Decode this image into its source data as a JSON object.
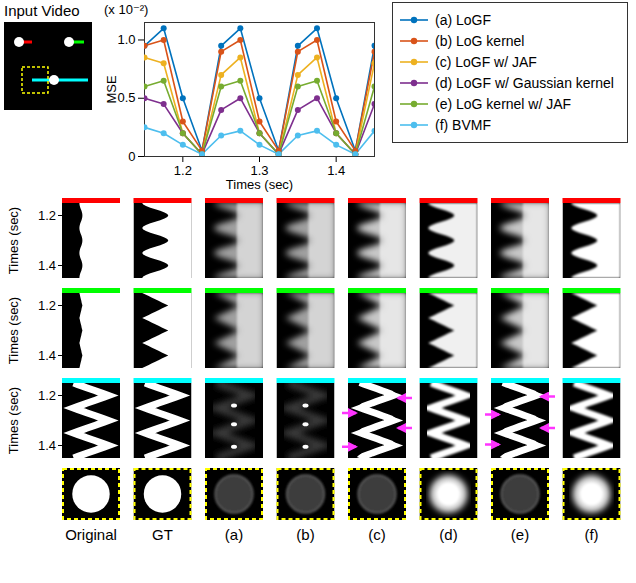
{
  "chart_data": {
    "type": "line",
    "x_label": "Times (sec)",
    "y_label": "MSE",
    "annotation": "(x 10⁻²)",
    "x": [
      1.15,
      1.175,
      1.2,
      1.225,
      1.25,
      1.275,
      1.3,
      1.325,
      1.35,
      1.375,
      1.4,
      1.425,
      1.45
    ],
    "xlim": [
      1.15,
      1.45
    ],
    "xticks": [
      1.2,
      1.3,
      1.4
    ],
    "ylim": [
      0,
      1.15
    ],
    "yticks": [
      0,
      0.5,
      {
        "value": 1,
        "label": "1.0"
      }
    ],
    "marker": "circle",
    "legend": "right",
    "series": [
      {
        "name": "(a) LoGF",
        "color": "#0072BD",
        "values": [
          0.95,
          1.1,
          0.5,
          0.05,
          0.95,
          1.1,
          0.5,
          0.05,
          0.95,
          1.1,
          0.5,
          0.05,
          0.95
        ]
      },
      {
        "name": "(b) LoG kernel",
        "color": "#D95319",
        "values": [
          0.95,
          1.0,
          0.3,
          0.05,
          0.9,
          1.0,
          0.3,
          0.05,
          0.9,
          1.0,
          0.3,
          0.05,
          0.9
        ]
      },
      {
        "name": "(c) LoGF w/ JAF",
        "color": "#EDB120",
        "values": [
          0.85,
          0.8,
          0.2,
          0.02,
          0.7,
          0.85,
          0.2,
          0.02,
          0.7,
          0.85,
          0.2,
          0.02,
          0.8
        ]
      },
      {
        "name": "(d) LoGF w/ Gaussian kernel",
        "color": "#7E2F8E",
        "values": [
          0.5,
          0.45,
          0.2,
          0.02,
          0.4,
          0.5,
          0.2,
          0.02,
          0.4,
          0.5,
          0.2,
          0.02,
          0.45
        ]
      },
      {
        "name": "(e) LoG kernel w/ JAF",
        "color": "#77AC30",
        "values": [
          0.6,
          0.65,
          0.2,
          0.02,
          0.6,
          0.65,
          0.2,
          0.02,
          0.6,
          0.65,
          0.2,
          0.02,
          0.6
        ]
      },
      {
        "name": "(f) BVMF",
        "color": "#4DBEEE",
        "values": [
          0.25,
          0.2,
          0.1,
          0.02,
          0.18,
          0.22,
          0.1,
          0.02,
          0.18,
          0.22,
          0.1,
          0.02,
          0.22
        ]
      }
    ]
  },
  "figure": {
    "input_label": "Input Video",
    "row_axis": {
      "label": "Times (sec)",
      "ticks": [
        1.2,
        1.4
      ]
    },
    "rows": [
      {
        "color": "#ff0000"
      },
      {
        "color": "#00ff00"
      },
      {
        "color": "#00ffff"
      },
      {
        "color": "#ffff00"
      }
    ],
    "columns": [
      "Original",
      "GT",
      "(a)",
      "(b)",
      "(c)",
      "(d)",
      "(e)",
      "(f)"
    ]
  }
}
